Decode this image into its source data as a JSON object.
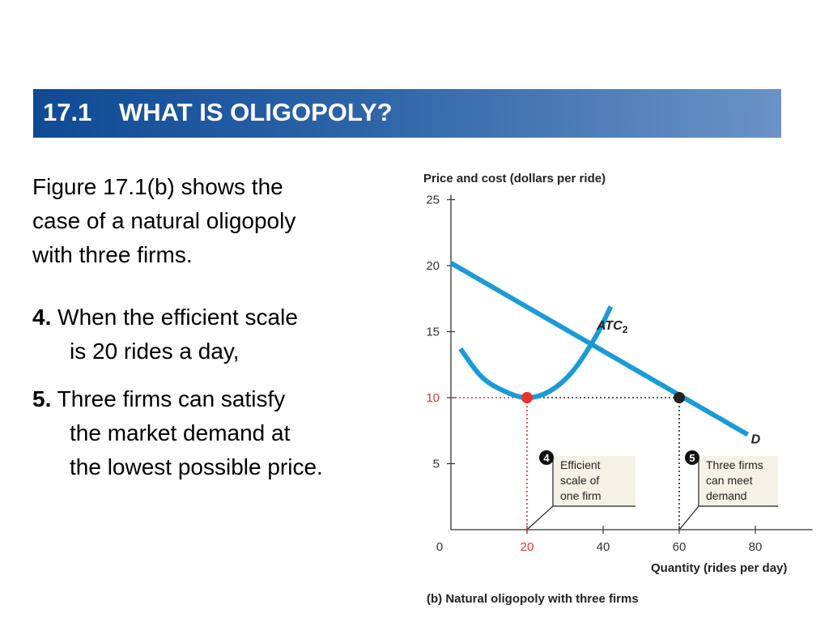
{
  "header": {
    "number": "17.1",
    "title": "WHAT IS OLIGOPOLY?"
  },
  "body": {
    "intro": [
      "Figure 17.1(b) shows the",
      "case of a natural oligopoly",
      "with three firms."
    ],
    "point4": {
      "num": "4.",
      "lines": [
        "When the efficient scale",
        "is 20 rides a day,"
      ]
    },
    "point5": {
      "num": "5.",
      "lines": [
        "Three firms can satisfy",
        "the market demand at",
        "the lowest possible price."
      ]
    }
  },
  "colors": {
    "curve": "#1a9bd7",
    "highlight": "#e8342a",
    "point": "#222222",
    "banner_start": "#0f4a94",
    "banner_end": "#6a93c6"
  },
  "chart_data": {
    "type": "line",
    "ylabel": "Price and cost (dollars per ride)",
    "xlabel": "Quantity (rides per day)",
    "caption": "(b) Natural oligopoly with three firms",
    "x_ticks": [
      "0",
      "20",
      "40",
      "60",
      "80"
    ],
    "y_ticks": [
      "5",
      "10",
      "15",
      "20",
      "25"
    ],
    "xlim": [
      0,
      95
    ],
    "ylim": [
      0,
      25
    ],
    "series": [
      {
        "name": "D",
        "x": [
          0,
          78
        ],
        "y": [
          20.2,
          7.2
        ]
      },
      {
        "name": "ATC",
        "subscript": "2",
        "x": [
          2.5,
          8,
          14,
          20,
          26,
          32,
          38,
          42
        ],
        "y": [
          13.7,
          11.6,
          10.5,
          10,
          10.5,
          12,
          14.6,
          16.9
        ]
      }
    ],
    "highlighted_points": [
      {
        "x": 20,
        "y": 10
      },
      {
        "x": 60,
        "y": 10
      }
    ],
    "highlight_tick_x": "20",
    "highlight_tick_y": "10",
    "annotations": [
      {
        "num": "4",
        "lines": [
          "Efficient",
          "scale of",
          "one firm"
        ]
      },
      {
        "num": "5",
        "lines": [
          "Three firms",
          "can meet",
          "demand"
        ]
      }
    ]
  }
}
